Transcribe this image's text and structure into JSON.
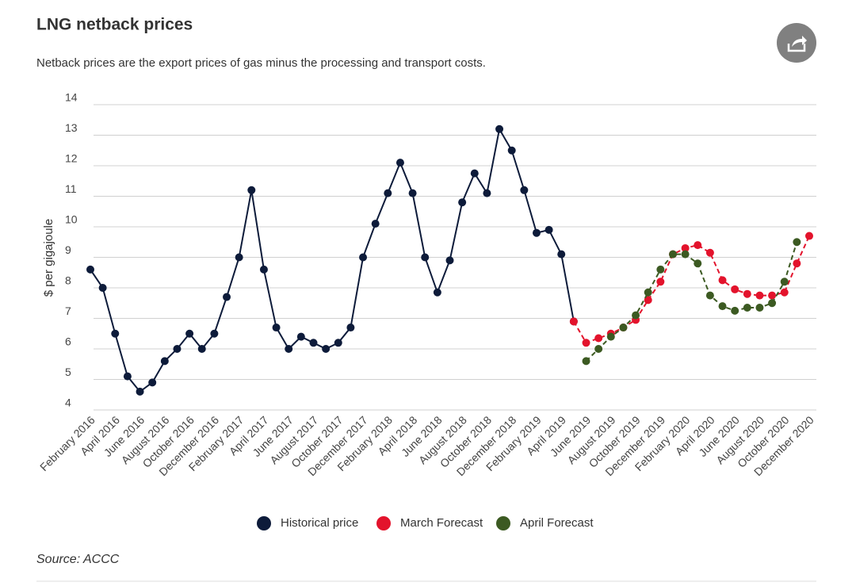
{
  "chart_data": {
    "type": "line",
    "title": "LNG netback prices",
    "subtitle": "Netback prices are the export prices of gas minus the processing and transport costs.",
    "y_label": "$ per gigajoule",
    "source": "Source: ACCC",
    "categories": [
      "February 2016",
      null,
      "April 2016",
      null,
      "June 2016",
      null,
      "August 2016",
      null,
      "October 2016",
      null,
      "December 2016",
      null,
      "February 2017",
      null,
      "April 2017",
      null,
      "June 2017",
      null,
      "August 2017",
      null,
      "October 2017",
      null,
      "December 2017",
      null,
      "February 2018",
      null,
      "April 2018",
      null,
      "June 2018",
      null,
      "August 2018",
      null,
      "October 2018",
      null,
      "December 2018",
      null,
      "February 2019",
      null,
      "April 2019",
      null,
      "June 2019",
      null,
      "August 2019",
      null,
      "October 2019",
      null,
      "December 2019",
      null,
      "February 2020",
      null,
      "April 2020",
      null,
      "June 2020",
      null,
      "August 2020",
      null,
      "October 2020",
      null,
      "December 2020"
    ],
    "series": [
      {
        "name": "Historical price",
        "color": "#0d1b3a",
        "dashed": false,
        "values": [
          8.6,
          8.0,
          6.5,
          5.1,
          4.6,
          4.9,
          5.6,
          6.0,
          6.5,
          6.0,
          6.5,
          7.7,
          9.0,
          11.2,
          8.6,
          6.7,
          6.0,
          6.4,
          6.2,
          6.0,
          6.2,
          6.7,
          9.0,
          10.1,
          11.1,
          12.1,
          11.1,
          9.0,
          7.85,
          8.9,
          10.8,
          11.75,
          11.1,
          13.2,
          12.5,
          11.2,
          9.8,
          9.9,
          9.1,
          6.9,
          null,
          null,
          null,
          null,
          null,
          null,
          null,
          null,
          null,
          null,
          null,
          null,
          null,
          null,
          null,
          null,
          null,
          null,
          null
        ]
      },
      {
        "name": "March Forecast",
        "color": "#e3132c",
        "dashed": true,
        "values": [
          null,
          null,
          null,
          null,
          null,
          null,
          null,
          null,
          null,
          null,
          null,
          null,
          null,
          null,
          null,
          null,
          null,
          null,
          null,
          null,
          null,
          null,
          null,
          null,
          null,
          null,
          null,
          null,
          null,
          null,
          null,
          null,
          null,
          null,
          null,
          null,
          null,
          null,
          null,
          6.9,
          6.2,
          6.35,
          6.5,
          6.7,
          6.95,
          7.6,
          8.2,
          9.1,
          9.3,
          9.4,
          9.15,
          8.25,
          7.95,
          7.8,
          7.75,
          7.75,
          7.85,
          8.8,
          9.7
        ]
      },
      {
        "name": "April Forecast",
        "color": "#3c5a22",
        "dashed": true,
        "values": [
          null,
          null,
          null,
          null,
          null,
          null,
          null,
          null,
          null,
          null,
          null,
          null,
          null,
          null,
          null,
          null,
          null,
          null,
          null,
          null,
          null,
          null,
          null,
          null,
          null,
          null,
          null,
          null,
          null,
          null,
          null,
          null,
          null,
          null,
          null,
          null,
          null,
          null,
          null,
          null,
          5.6,
          6.0,
          6.4,
          6.7,
          7.1,
          7.85,
          8.6,
          9.1,
          9.1,
          8.8,
          7.75,
          7.4,
          7.25,
          7.35,
          7.35,
          7.5,
          8.2,
          9.5,
          null
        ]
      }
    ],
    "ylim": [
      4,
      14
    ],
    "yticks": [
      4,
      5,
      6,
      7,
      8,
      9,
      10,
      11,
      12,
      13,
      14
    ],
    "grid": true
  }
}
